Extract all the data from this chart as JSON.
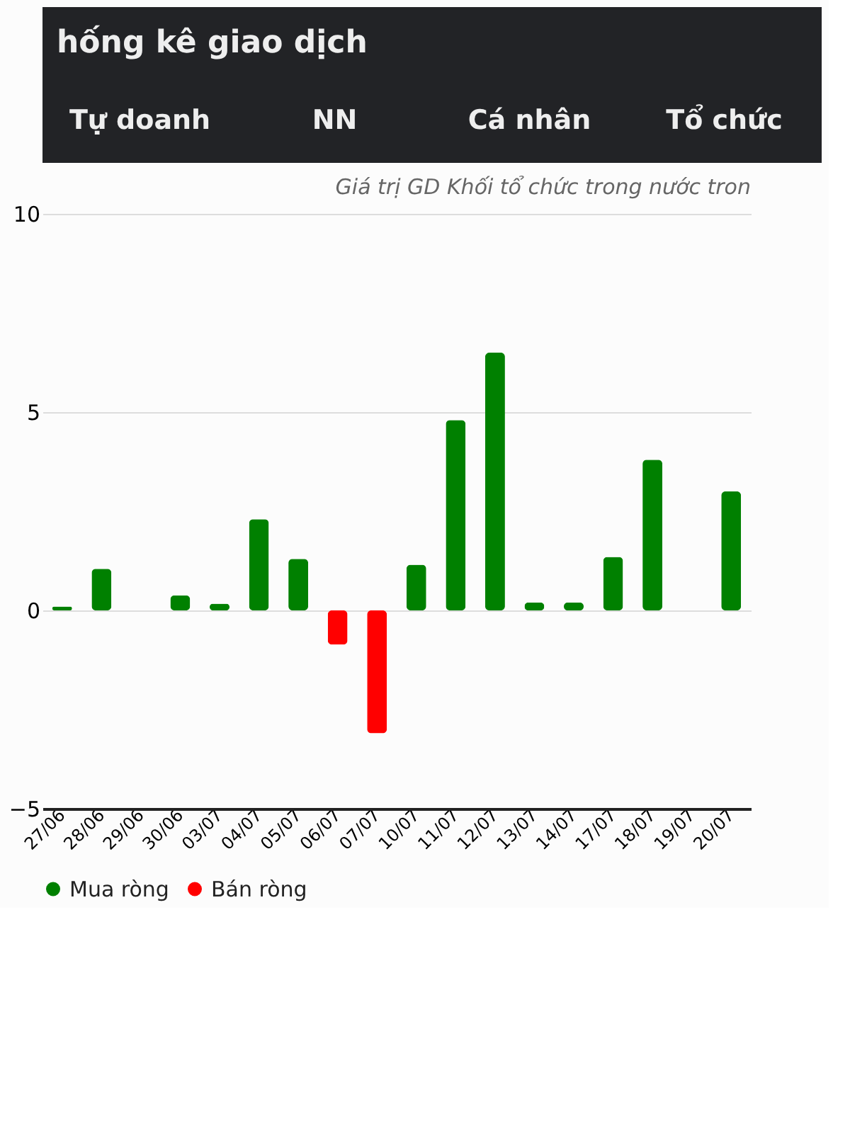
{
  "chart_data": {
    "type": "bar",
    "title": "hống kê giao dịch",
    "subtitle": "Giá trị GD Khối tổ chức trong nước tron",
    "annotations": [
      "Tự doanh",
      "NN",
      "Cá nhân",
      "Tổ chức"
    ],
    "categories": [
      "27/06",
      "28/06",
      "29/06",
      "30/06",
      "03/07",
      "04/07",
      "05/07",
      "06/07",
      "07/07",
      "10/07",
      "11/07",
      "12/07",
      "13/07",
      "14/07",
      "17/07",
      "18/07",
      "19/07",
      "20/07"
    ],
    "series": [
      {
        "name": "Mua ròng",
        "color": "#008000",
        "values": [
          0.1,
          1.05,
          null,
          0.38,
          0.17,
          2.3,
          1.3,
          null,
          null,
          1.15,
          4.8,
          6.5,
          0.2,
          0.2,
          1.35,
          3.8,
          null,
          3.0
        ]
      },
      {
        "name": "Bán ròng",
        "color": "#ff0000",
        "values": [
          null,
          null,
          null,
          null,
          null,
          null,
          null,
          -0.86,
          -3.1,
          null,
          null,
          null,
          null,
          null,
          null,
          null,
          null,
          null
        ]
      }
    ],
    "ylim": [
      -5,
      10
    ],
    "yticks": [
      -5,
      0,
      5,
      10
    ],
    "grid": "y",
    "legend": "bottom",
    "marker": "circle"
  }
}
